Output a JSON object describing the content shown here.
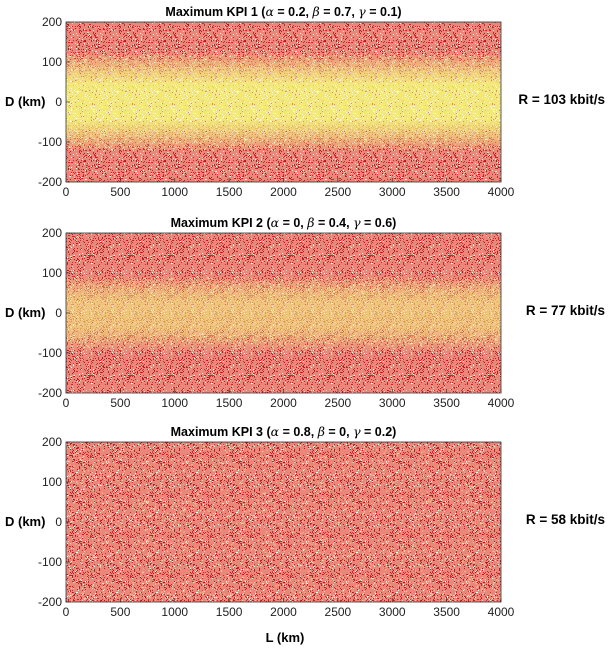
{
  "figure": {
    "xlabel": "L (km)"
  },
  "chart_data": [
    {
      "type": "heatmap",
      "title_prefix": "Maximum KPI 1 (",
      "title_parts": [
        {
          "symbol": "α",
          "text": " = 0.2, "
        },
        {
          "symbol": "β",
          "text": " = 0.7, "
        },
        {
          "symbol": "γ",
          "text": " = 0.1)"
        }
      ],
      "alpha": 0.2,
      "beta": 0.7,
      "gamma": 0.1,
      "ylabel": "D (km)",
      "rate_label": "R = 103 kbit/s",
      "rate_kbit_s": 103,
      "xlim": [
        0,
        4000
      ],
      "ylim": [
        -200,
        200
      ],
      "xticks": [
        "0",
        "500",
        "1000",
        "1500",
        "2000",
        "2500",
        "3000",
        "3500",
        "4000"
      ],
      "yticks": [
        "200",
        "100",
        "0",
        "-100",
        "-200"
      ],
      "high_band_half_width_km": 90,
      "band_strength": 0.95,
      "colors": {
        "low": "#c8282d",
        "high": "#f2ee7a",
        "mid": "#e9877a"
      }
    },
    {
      "type": "heatmap",
      "title_prefix": "Maximum KPI 2 (",
      "title_parts": [
        {
          "symbol": "α",
          "text": " = 0, "
        },
        {
          "symbol": "β",
          "text": " = 0.4, "
        },
        {
          "symbol": "γ",
          "text": " = 0.6)"
        }
      ],
      "alpha": 0,
      "beta": 0.4,
      "gamma": 0.6,
      "ylabel": "D (km)",
      "rate_label": "R = 77 kbit/s",
      "rate_kbit_s": 77,
      "xlim": [
        0,
        4000
      ],
      "ylim": [
        -200,
        200
      ],
      "xticks": [
        "0",
        "500",
        "1000",
        "1500",
        "2000",
        "2500",
        "3000",
        "3500",
        "4000"
      ],
      "yticks": [
        "200",
        "100",
        "0",
        "-100",
        "-200"
      ],
      "high_band_half_width_km": 60,
      "band_strength": 0.6,
      "colors": {
        "low": "#c8282d",
        "high": "#f2ee7a",
        "mid": "#e9877a"
      }
    },
    {
      "type": "heatmap",
      "title_prefix": "Maximum KPI 3 (",
      "title_parts": [
        {
          "symbol": "α",
          "text": " = 0.8, "
        },
        {
          "symbol": "β",
          "text": " = 0, "
        },
        {
          "symbol": "γ",
          "text": " = 0.2)"
        }
      ],
      "alpha": 0.8,
      "beta": 0,
      "gamma": 0.2,
      "ylabel": "D (km)",
      "rate_label": "R = 58 kbit/s",
      "rate_kbit_s": 58,
      "xlim": [
        0,
        4000
      ],
      "ylim": [
        -200,
        200
      ],
      "xticks": [
        "0",
        "500",
        "1000",
        "1500",
        "2000",
        "2500",
        "3000",
        "3500",
        "4000"
      ],
      "yticks": [
        "200",
        "100",
        "0",
        "-100",
        "-200"
      ],
      "high_band_half_width_km": 0,
      "band_strength": 0.0,
      "colors": {
        "low": "#c8282d",
        "high": "#f2ee7a",
        "mid": "#e9877a"
      }
    }
  ]
}
